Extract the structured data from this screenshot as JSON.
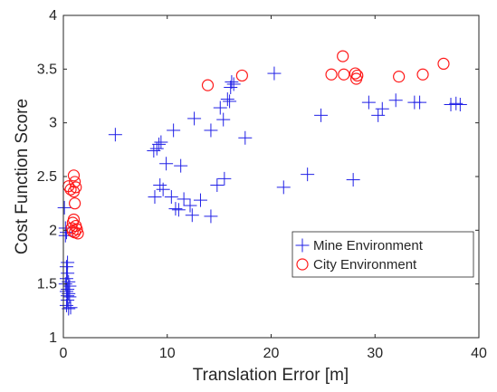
{
  "chart_data": {
    "type": "scatter",
    "title": "",
    "xlabel": "Translation Error [m]",
    "ylabel": "Cost Function Score",
    "xlim": [
      0,
      40
    ],
    "ylim": [
      1,
      4
    ],
    "x_ticks": [
      0,
      10,
      20,
      30,
      40
    ],
    "y_ticks": [
      1,
      1.5,
      2,
      2.5,
      3,
      3.5,
      4
    ],
    "x_tick_labels": [
      "0",
      "10",
      "20",
      "30",
      "40"
    ],
    "y_tick_labels": [
      "1",
      "1.5",
      "2",
      "2.5",
      "3",
      "3.5",
      "4"
    ],
    "grid": false,
    "legend_position": "middle-right",
    "series": [
      {
        "name": "Mine Environment",
        "marker": "plus",
        "color": "#1f1fe6",
        "points": [
          [
            0.1,
            2.21
          ],
          [
            0.2,
            2.02
          ],
          [
            0.3,
            1.98
          ],
          [
            0.2,
            1.95
          ],
          [
            0.4,
            1.7
          ],
          [
            0.3,
            1.66
          ],
          [
            0.4,
            1.6
          ],
          [
            0.3,
            1.55
          ],
          [
            0.5,
            1.52
          ],
          [
            0.2,
            1.5
          ],
          [
            0.6,
            1.48
          ],
          [
            0.4,
            1.45
          ],
          [
            0.3,
            1.43
          ],
          [
            0.5,
            1.41
          ],
          [
            0.4,
            1.39
          ],
          [
            0.6,
            1.38
          ],
          [
            0.4,
            1.35
          ],
          [
            0.3,
            1.3
          ],
          [
            0.7,
            1.28
          ],
          [
            0.5,
            1.27
          ],
          [
            5.0,
            2.89
          ],
          [
            8.7,
            2.74
          ],
          [
            9.0,
            2.76
          ],
          [
            9.2,
            2.8
          ],
          [
            9.4,
            2.82
          ],
          [
            8.8,
            2.31
          ],
          [
            9.3,
            2.42
          ],
          [
            9.6,
            2.38
          ],
          [
            9.9,
            2.62
          ],
          [
            10.4,
            2.31
          ],
          [
            10.6,
            2.93
          ],
          [
            10.8,
            2.2
          ],
          [
            11.1,
            2.19
          ],
          [
            11.3,
            2.6
          ],
          [
            11.6,
            2.29
          ],
          [
            12.2,
            2.23
          ],
          [
            12.4,
            2.14
          ],
          [
            12.6,
            3.04
          ],
          [
            13.2,
            2.28
          ],
          [
            14.2,
            2.93
          ],
          [
            14.2,
            2.13
          ],
          [
            14.8,
            2.42
          ],
          [
            15.1,
            3.14
          ],
          [
            15.4,
            3.03
          ],
          [
            15.5,
            2.48
          ],
          [
            15.8,
            3.22
          ],
          [
            16.1,
            3.33
          ],
          [
            16.0,
            3.2
          ],
          [
            16.2,
            3.38
          ],
          [
            16.4,
            3.36
          ],
          [
            17.5,
            2.86
          ],
          [
            20.3,
            3.46
          ],
          [
            21.2,
            2.4
          ],
          [
            23.5,
            2.52
          ],
          [
            24.8,
            3.07
          ],
          [
            27.9,
            2.47
          ],
          [
            29.4,
            3.19
          ],
          [
            30.3,
            3.07
          ],
          [
            30.7,
            3.13
          ],
          [
            32.0,
            3.21
          ],
          [
            33.8,
            3.19
          ],
          [
            34.3,
            3.19
          ],
          [
            37.3,
            3.17
          ],
          [
            37.8,
            3.18
          ],
          [
            38.2,
            3.17
          ]
        ]
      },
      {
        "name": "City Environment",
        "marker": "circle",
        "color": "#ff1a1a",
        "points": [
          [
            0.5,
            2.41
          ],
          [
            0.7,
            2.38
          ],
          [
            1.0,
            2.51
          ],
          [
            1.1,
            2.45
          ],
          [
            1.2,
            2.4
          ],
          [
            1.0,
            2.36
          ],
          [
            1.1,
            2.25
          ],
          [
            1.0,
            2.1
          ],
          [
            0.9,
            2.07
          ],
          [
            1.2,
            2.04
          ],
          [
            0.8,
            2.02
          ],
          [
            1.3,
            2.01
          ],
          [
            0.9,
            1.99
          ],
          [
            1.1,
            1.98
          ],
          [
            1.4,
            1.97
          ],
          [
            13.9,
            3.35
          ],
          [
            17.2,
            3.44
          ],
          [
            25.8,
            3.45
          ],
          [
            26.9,
            3.62
          ],
          [
            27.0,
            3.45
          ],
          [
            28.1,
            3.46
          ],
          [
            28.2,
            3.41
          ],
          [
            28.3,
            3.44
          ],
          [
            32.3,
            3.43
          ],
          [
            34.6,
            3.45
          ],
          [
            36.6,
            3.55
          ]
        ]
      }
    ]
  }
}
